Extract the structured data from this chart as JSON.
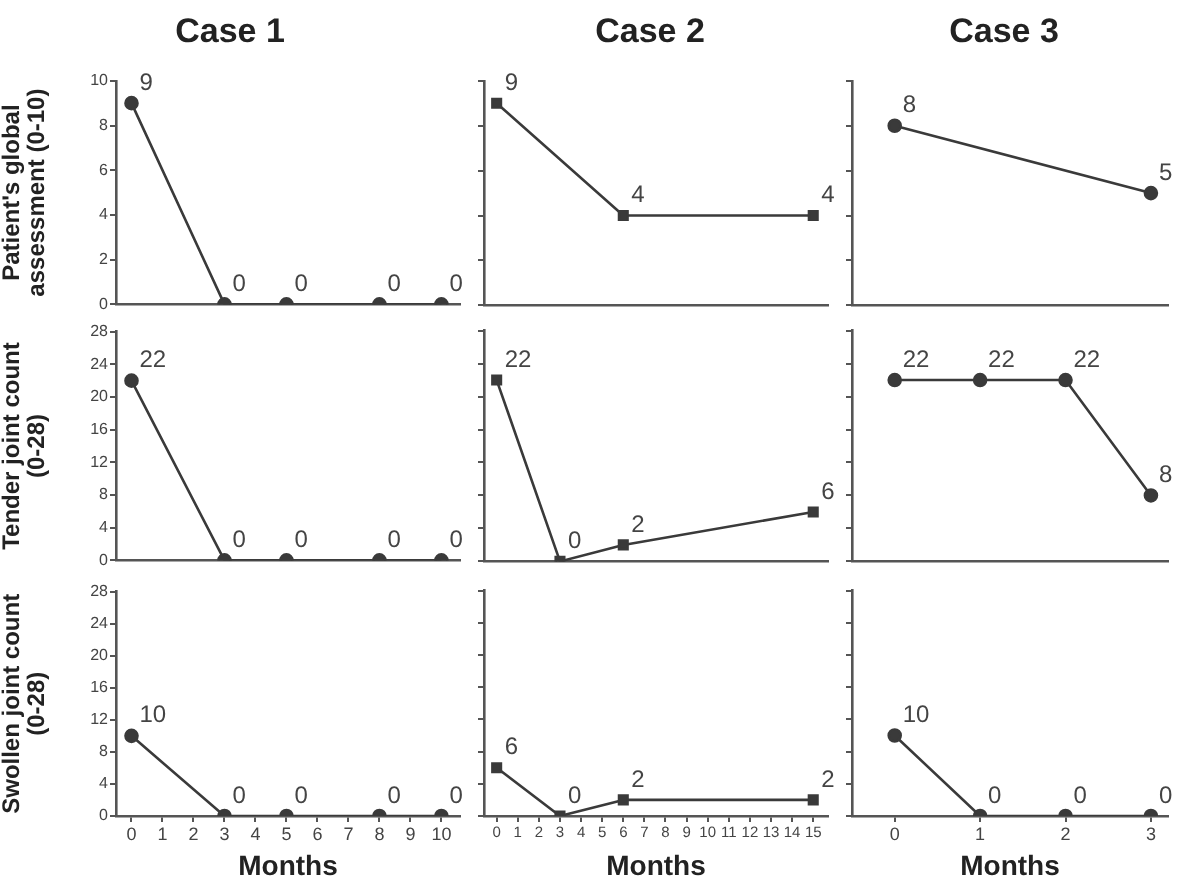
{
  "chart_data": [
    {
      "type": "line",
      "title": "Case 1",
      "ylabel": "Patient's global assessment (0-10)",
      "x": [
        0,
        3,
        5,
        8,
        10
      ],
      "values": [
        9,
        0,
        0,
        0,
        0
      ],
      "color": "#3a3a3a",
      "marker": "circle",
      "data_labels": true,
      "xlim": [
        -0.5,
        10.6
      ],
      "xticks": [
        0,
        1,
        2,
        3,
        4,
        5,
        6,
        7,
        8,
        9,
        10
      ],
      "ylim": [
        0,
        10
      ],
      "yticks": [
        0,
        2,
        4,
        6,
        8,
        10
      ],
      "tick_labels": "y",
      "legend": false
    },
    {
      "type": "line",
      "title": "Case 2",
      "x": [
        0,
        6,
        15
      ],
      "values": [
        9,
        4,
        4
      ],
      "color": "#3a3a3a",
      "marker": "square",
      "data_labels": true,
      "xlim": [
        -0.6,
        15.7
      ],
      "xticks": [
        0,
        1,
        2,
        3,
        4,
        5,
        6,
        7,
        8,
        9,
        10,
        11,
        12,
        13,
        14,
        15
      ],
      "ylim": [
        0,
        10
      ],
      "yticks": [
        {
          "value": 0,
          "label": null
        },
        {
          "value": 2,
          "label": null
        },
        {
          "value": 4,
          "label": null
        },
        {
          "value": 6,
          "label": null
        },
        {
          "value": 8,
          "label": null
        },
        {
          "value": 10,
          "label": null
        }
      ],
      "tick_labels": false,
      "legend": false
    },
    {
      "type": "line",
      "title": "Case 3",
      "x": [
        0,
        3
      ],
      "values": [
        8,
        5
      ],
      "color": "#3a3a3a",
      "marker": "circle",
      "data_labels": true,
      "xlim": [
        -0.5,
        3.2
      ],
      "xticks": [
        0,
        1,
        2,
        3
      ],
      "ylim": [
        0,
        10
      ],
      "yticks": [
        {
          "value": 0,
          "label": null
        },
        {
          "value": 2,
          "label": null
        },
        {
          "value": 4,
          "label": null
        },
        {
          "value": 6,
          "label": null
        },
        {
          "value": 8,
          "label": null
        },
        {
          "value": 10,
          "label": null
        }
      ],
      "tick_labels": false,
      "legend": false
    },
    {
      "type": "line",
      "ylabel": "Tender joint count (0-28)",
      "x": [
        0,
        3,
        5,
        8,
        10
      ],
      "values": [
        22,
        0,
        0,
        0,
        0
      ],
      "color": "#3a3a3a",
      "marker": "circle",
      "data_labels": true,
      "xlim": [
        -0.5,
        10.6
      ],
      "xticks": [
        0,
        1,
        2,
        3,
        4,
        5,
        6,
        7,
        8,
        9,
        10
      ],
      "ylim": [
        0,
        28
      ],
      "yticks": [
        0,
        4,
        8,
        12,
        16,
        20,
        24,
        28
      ],
      "tick_labels": "y",
      "legend": false
    },
    {
      "type": "line",
      "x": [
        0,
        3,
        6,
        15
      ],
      "values": [
        22,
        0,
        2,
        6
      ],
      "color": "#3a3a3a",
      "marker": "square",
      "data_labels": true,
      "xlim": [
        -0.6,
        15.7
      ],
      "xticks": [
        0,
        1,
        2,
        3,
        4,
        5,
        6,
        7,
        8,
        9,
        10,
        11,
        12,
        13,
        14,
        15
      ],
      "ylim": [
        0,
        28
      ],
      "yticks": [
        {
          "value": 0,
          "label": null
        },
        {
          "value": 4,
          "label": null
        },
        {
          "value": 8,
          "label": null
        },
        {
          "value": 12,
          "label": null
        },
        {
          "value": 16,
          "label": null
        },
        {
          "value": 20,
          "label": null
        },
        {
          "value": 24,
          "label": null
        },
        {
          "value": 28,
          "label": null
        }
      ],
      "tick_labels": false,
      "legend": false
    },
    {
      "type": "line",
      "x": [
        0,
        1,
        2,
        3
      ],
      "values": [
        22,
        22,
        22,
        8
      ],
      "color": "#3a3a3a",
      "marker": "circle",
      "data_labels": true,
      "xlim": [
        -0.5,
        3.2
      ],
      "xticks": [
        0,
        1,
        2,
        3
      ],
      "ylim": [
        0,
        28
      ],
      "yticks": [
        {
          "value": 0,
          "label": null
        },
        {
          "value": 4,
          "label": null
        },
        {
          "value": 8,
          "label": null
        },
        {
          "value": 12,
          "label": null
        },
        {
          "value": 16,
          "label": null
        },
        {
          "value": 20,
          "label": null
        },
        {
          "value": 24,
          "label": null
        },
        {
          "value": 28,
          "label": null
        }
      ],
      "tick_labels": false,
      "legend": false
    },
    {
      "type": "line",
      "ylabel": "Swollen joint count (0-28)",
      "xlabel": "Months",
      "x": [
        0,
        3,
        5,
        8,
        10
      ],
      "values": [
        10,
        0,
        0,
        0,
        0
      ],
      "color": "#3a3a3a",
      "marker": "circle",
      "data_labels": true,
      "xlim": [
        -0.5,
        10.6
      ],
      "xticks": [
        0,
        1,
        2,
        3,
        4,
        5,
        6,
        7,
        8,
        9,
        10
      ],
      "ylim": [
        0,
        28
      ],
      "yticks": [
        0,
        4,
        8,
        12,
        16,
        20,
        24,
        28
      ],
      "legend": false
    },
    {
      "type": "line",
      "xlabel": "Months",
      "x": [
        0,
        3,
        6,
        15
      ],
      "values": [
        6,
        0,
        2,
        2
      ],
      "color": "#3a3a3a",
      "marker": "square",
      "data_labels": true,
      "xlim": [
        -0.6,
        15.7
      ],
      "xticks": [
        0,
        1,
        2,
        3,
        4,
        5,
        6,
        7,
        8,
        9,
        10,
        11,
        12,
        13,
        14,
        15
      ],
      "ylim": [
        0,
        28
      ],
      "yticks": [
        {
          "value": 0,
          "label": null
        },
        {
          "value": 4,
          "label": null
        },
        {
          "value": 8,
          "label": null
        },
        {
          "value": 12,
          "label": null
        },
        {
          "value": 16,
          "label": null
        },
        {
          "value": 20,
          "label": null
        },
        {
          "value": 24,
          "label": null
        },
        {
          "value": 28,
          "label": null
        }
      ],
      "tick_labels": "x",
      "legend": false
    },
    {
      "type": "line",
      "xlabel": "Months",
      "x": [
        0,
        1,
        2,
        3
      ],
      "values": [
        10,
        0,
        0,
        0
      ],
      "color": "#3a3a3a",
      "marker": "circle",
      "data_labels": true,
      "xlim": [
        -0.5,
        3.2
      ],
      "xticks": [
        0,
        1,
        2,
        3
      ],
      "ylim": [
        0,
        28
      ],
      "yticks": [
        {
          "value": 0,
          "label": null
        },
        {
          "value": 4,
          "label": null
        },
        {
          "value": 8,
          "label": null
        },
        {
          "value": 12,
          "label": null
        },
        {
          "value": 16,
          "label": null
        },
        {
          "value": 20,
          "label": null
        },
        {
          "value": 24,
          "label": null
        },
        {
          "value": 28,
          "label": null
        }
      ],
      "tick_labels": "x",
      "legend": false
    }
  ]
}
